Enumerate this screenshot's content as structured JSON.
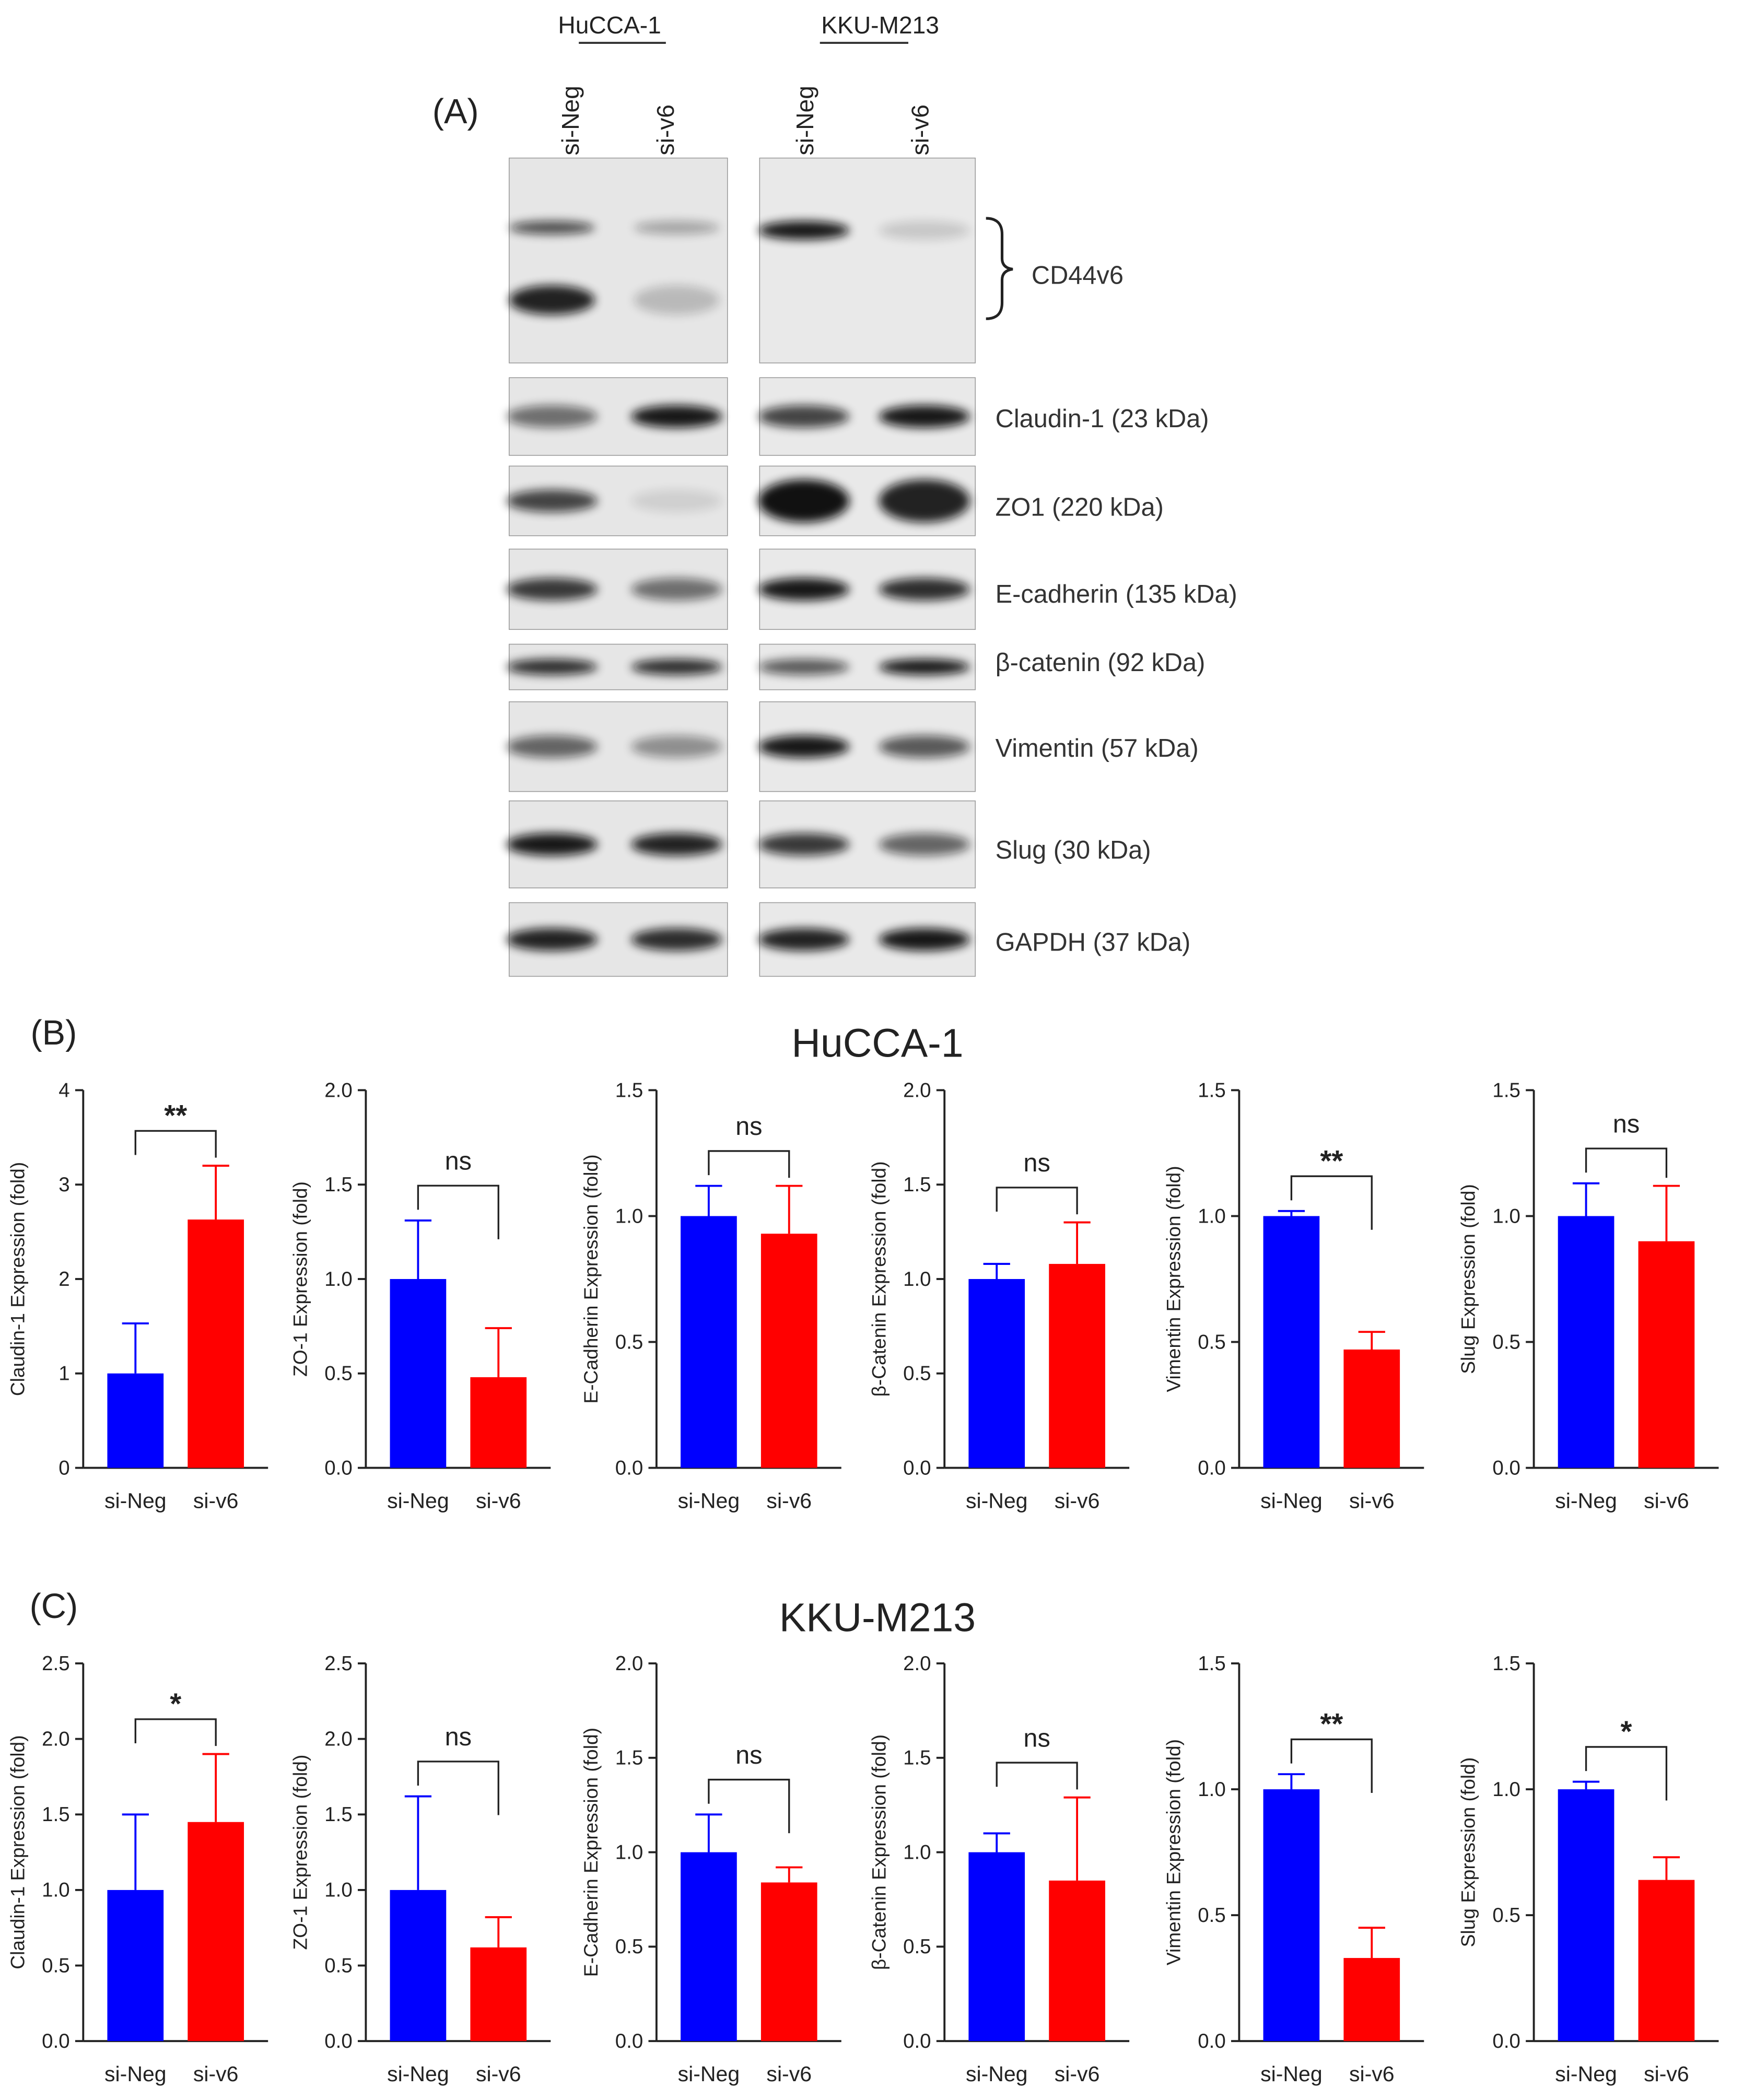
{
  "blot": {
    "label": "(A)",
    "cell_lines": [
      "HuCCA-1",
      "KKU-M213"
    ],
    "lanes": [
      "si-Neg",
      "si-v6",
      "si-Neg",
      "si-v6"
    ],
    "proteins": [
      "CD44v6",
      "Claudin-1 (23 kDa)",
      "ZO1 (220 kDa)",
      "E-cadherin (135 kDa)",
      "β-catenin (92 kDa)",
      "Vimentin (57 kDa)",
      "Slug (30 kDa)",
      "GAPDH (37 kDa)"
    ]
  },
  "sections": [
    {
      "label": "(B)",
      "title": "HuCCA-1"
    },
    {
      "label": "(C)",
      "title": "KKU-M213"
    }
  ],
  "chart_data": [
    {
      "type": "bar",
      "ylabel": "Claudin-1 Expression  (fold)",
      "categories": [
        "si-Neg",
        "si-v6"
      ],
      "values": [
        1,
        2.63
      ],
      "errors": [
        0.53,
        0.57
      ],
      "colors": [
        "#0000ff",
        "#ff0000"
      ],
      "significance": "**",
      "ylim": [
        0,
        4
      ],
      "yticks": [
        0,
        1,
        2,
        3,
        4
      ]
    },
    {
      "type": "bar",
      "ylabel": "ZO-1 Expression  (fold)",
      "categories": [
        "si-Neg",
        "si-v6"
      ],
      "values": [
        1,
        0.48
      ],
      "errors": [
        0.31,
        0.26
      ],
      "colors": [
        "#0000ff",
        "#ff0000"
      ],
      "significance": "ns",
      "ylim": [
        0,
        2
      ],
      "yticks": [
        {
          "value": 0,
          "label": "0.0"
        },
        0.5,
        {
          "value": 1,
          "label": "1.0"
        },
        1.5,
        {
          "value": 2,
          "label": "2.0"
        }
      ]
    },
    {
      "type": "bar",
      "ylabel": "E-Cadherin Expression  (fold)",
      "categories": [
        "si-Neg",
        "si-v6"
      ],
      "values": [
        1,
        0.93
      ],
      "errors": [
        0.12,
        0.19
      ],
      "colors": [
        "#0000ff",
        "#ff0000"
      ],
      "significance": "ns",
      "ylim": [
        0,
        1.5
      ],
      "yticks": [
        {
          "value": 0,
          "label": "0.0"
        },
        0.5,
        {
          "value": 1,
          "label": "1.0"
        },
        1.5
      ]
    },
    {
      "type": "bar",
      "ylabel": "β-Catenin Expression  (fold)",
      "categories": [
        "si-Neg",
        "si-v6"
      ],
      "values": [
        1,
        1.08
      ],
      "errors": [
        0.08,
        0.22
      ],
      "colors": [
        "#0000ff",
        "#ff0000"
      ],
      "significance": "ns",
      "ylim": [
        0,
        2
      ],
      "yticks": [
        {
          "value": 0,
          "label": "0.0"
        },
        0.5,
        {
          "value": 1,
          "label": "1.0"
        },
        1.5,
        {
          "value": 2,
          "label": "2.0"
        }
      ]
    },
    {
      "type": "bar",
      "ylabel": "Vimentin Expression  (fold)",
      "categories": [
        "si-Neg",
        "si-v6"
      ],
      "values": [
        1,
        0.47
      ],
      "errors": [
        0.02,
        0.07
      ],
      "colors": [
        "#0000ff",
        "#ff0000"
      ],
      "significance": "**",
      "ylim": [
        0,
        1.5
      ],
      "yticks": [
        {
          "value": 0,
          "label": "0.0"
        },
        0.5,
        {
          "value": 1,
          "label": "1.0"
        },
        1.5
      ]
    },
    {
      "type": "bar",
      "ylabel": "Slug Expression  (fold)",
      "categories": [
        "si-Neg",
        "si-v6"
      ],
      "values": [
        1,
        0.9
      ],
      "errors": [
        0.13,
        0.22
      ],
      "colors": [
        "#0000ff",
        "#ff0000"
      ],
      "significance": "ns",
      "ylim": [
        0,
        1.5
      ],
      "yticks": [
        {
          "value": 0,
          "label": "0.0"
        },
        0.5,
        {
          "value": 1,
          "label": "1.0"
        },
        1.5
      ]
    },
    {
      "type": "bar",
      "ylabel": "Claudin-1 Expression  (fold)",
      "categories": [
        "si-Neg",
        "si-v6"
      ],
      "values": [
        1,
        1.45
      ],
      "errors": [
        0.5,
        0.45
      ],
      "colors": [
        "#0000ff",
        "#ff0000"
      ],
      "significance": "*",
      "ylim": [
        0,
        2.5
      ],
      "yticks": [
        {
          "value": 0,
          "label": "0.0"
        },
        0.5,
        {
          "value": 1,
          "label": "1.0"
        },
        1.5,
        {
          "value": 2,
          "label": "2.0"
        },
        2.5
      ]
    },
    {
      "type": "bar",
      "ylabel": "ZO-1 Expression  (fold)",
      "categories": [
        "si-Neg",
        "si-v6"
      ],
      "values": [
        1,
        0.62
      ],
      "errors": [
        0.62,
        0.2
      ],
      "colors": [
        "#0000ff",
        "#ff0000"
      ],
      "significance": "ns",
      "ylim": [
        0,
        2.5
      ],
      "yticks": [
        {
          "value": 0,
          "label": "0.0"
        },
        0.5,
        {
          "value": 1,
          "label": "1.0"
        },
        1.5,
        {
          "value": 2,
          "label": "2.0"
        },
        2.5
      ]
    },
    {
      "type": "bar",
      "ylabel": "E-Cadherin Expression  (fold)",
      "categories": [
        "si-Neg",
        "si-v6"
      ],
      "values": [
        1,
        0.84
      ],
      "errors": [
        0.2,
        0.08
      ],
      "colors": [
        "#0000ff",
        "#ff0000"
      ],
      "significance": "ns",
      "ylim": [
        0,
        2
      ],
      "yticks": [
        {
          "value": 0,
          "label": "0.0"
        },
        0.5,
        {
          "value": 1,
          "label": "1.0"
        },
        1.5,
        {
          "value": 2,
          "label": "2.0"
        }
      ]
    },
    {
      "type": "bar",
      "ylabel": "β-Catenin Expression  (fold)",
      "categories": [
        "si-Neg",
        "si-v6"
      ],
      "values": [
        1,
        0.85
      ],
      "errors": [
        0.1,
        0.44
      ],
      "colors": [
        "#0000ff",
        "#ff0000"
      ],
      "significance": "ns",
      "ylim": [
        0,
        2
      ],
      "yticks": [
        {
          "value": 0,
          "label": "0.0"
        },
        0.5,
        {
          "value": 1,
          "label": "1.0"
        },
        1.5,
        {
          "value": 2,
          "label": "2.0"
        }
      ]
    },
    {
      "type": "bar",
      "ylabel": "Vimentin Expression  (fold)",
      "categories": [
        "si-Neg",
        "si-v6"
      ],
      "values": [
        1,
        0.33
      ],
      "errors": [
        0.06,
        0.12
      ],
      "colors": [
        "#0000ff",
        "#ff0000"
      ],
      "significance": "**",
      "ylim": [
        0,
        1.5
      ],
      "yticks": [
        {
          "value": 0,
          "label": "0.0"
        },
        0.5,
        {
          "value": 1,
          "label": "1.0"
        },
        1.5
      ]
    },
    {
      "type": "bar",
      "ylabel": "Slug Expression  (fold)",
      "categories": [
        "si-Neg",
        "si-v6"
      ],
      "values": [
        1,
        0.64
      ],
      "errors": [
        0.03,
        0.09
      ],
      "colors": [
        "#0000ff",
        "#ff0000"
      ],
      "significance": "*",
      "ylim": [
        0,
        1.5
      ],
      "yticks": [
        {
          "value": 0,
          "label": "0.0"
        },
        0.5,
        {
          "value": 1,
          "label": "1.0"
        },
        1.5
      ]
    }
  ]
}
